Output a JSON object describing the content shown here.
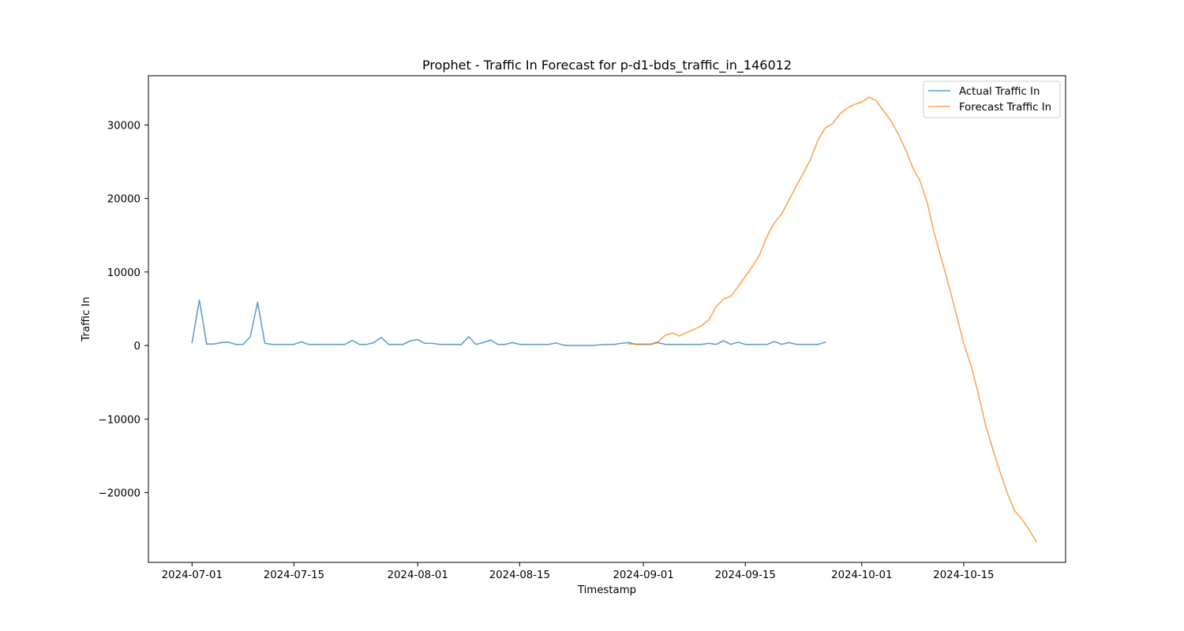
{
  "chart_data": {
    "type": "line",
    "title": "Prophet - Traffic In Forecast for p-d1-bds_traffic_in_146012",
    "xlabel": "Timestamp",
    "ylabel": "Traffic In",
    "x_ticks": [
      "2024-07-01",
      "2024-07-15",
      "2024-08-01",
      "2024-08-15",
      "2024-09-01",
      "2024-09-15",
      "2024-10-01",
      "2024-10-15"
    ],
    "y_ticks": [
      -20000,
      -10000,
      0,
      10000,
      20000,
      30000
    ],
    "y_tick_labels": [
      "−20000",
      "−10000",
      "0",
      "10000",
      "20000",
      "30000"
    ],
    "xlim": [
      "2024-06-25",
      "2024-10-29"
    ],
    "ylim": [
      -29500,
      36700
    ],
    "grid": false,
    "legend_position": "top-right",
    "series": [
      {
        "name": "Actual Traffic In",
        "color": "#1f77b4",
        "points": [
          [
            "2024-07-01",
            400
          ],
          [
            "2024-07-02",
            6200
          ],
          [
            "2024-07-03",
            200
          ],
          [
            "2024-07-04",
            200
          ],
          [
            "2024-07-05",
            400
          ],
          [
            "2024-07-06",
            450
          ],
          [
            "2024-07-07",
            150
          ],
          [
            "2024-07-08",
            150
          ],
          [
            "2024-07-09",
            1200
          ],
          [
            "2024-07-10",
            5900
          ],
          [
            "2024-07-11",
            300
          ],
          [
            "2024-07-12",
            150
          ],
          [
            "2024-07-13",
            150
          ],
          [
            "2024-07-14",
            150
          ],
          [
            "2024-07-15",
            150
          ],
          [
            "2024-07-16",
            500
          ],
          [
            "2024-07-17",
            150
          ],
          [
            "2024-07-18",
            150
          ],
          [
            "2024-07-19",
            150
          ],
          [
            "2024-07-20",
            150
          ],
          [
            "2024-07-21",
            150
          ],
          [
            "2024-07-22",
            150
          ],
          [
            "2024-07-23",
            700
          ],
          [
            "2024-07-24",
            150
          ],
          [
            "2024-07-25",
            150
          ],
          [
            "2024-07-26",
            400
          ],
          [
            "2024-07-27",
            1100
          ],
          [
            "2024-07-28",
            150
          ],
          [
            "2024-07-29",
            150
          ],
          [
            "2024-07-30",
            150
          ],
          [
            "2024-07-31",
            650
          ],
          [
            "2024-08-01",
            800
          ],
          [
            "2024-08-02",
            300
          ],
          [
            "2024-08-03",
            300
          ],
          [
            "2024-08-04",
            150
          ],
          [
            "2024-08-05",
            150
          ],
          [
            "2024-08-06",
            150
          ],
          [
            "2024-08-07",
            150
          ],
          [
            "2024-08-08",
            1200
          ],
          [
            "2024-08-09",
            150
          ],
          [
            "2024-08-10",
            400
          ],
          [
            "2024-08-11",
            750
          ],
          [
            "2024-08-12",
            150
          ],
          [
            "2024-08-13",
            150
          ],
          [
            "2024-08-14",
            400
          ],
          [
            "2024-08-15",
            150
          ],
          [
            "2024-08-16",
            150
          ],
          [
            "2024-08-17",
            150
          ],
          [
            "2024-08-18",
            150
          ],
          [
            "2024-08-19",
            150
          ],
          [
            "2024-08-20",
            350
          ],
          [
            "2024-08-21",
            50
          ],
          [
            "2024-08-22",
            0
          ],
          [
            "2024-08-23",
            0
          ],
          [
            "2024-08-24",
            0
          ],
          [
            "2024-08-25",
            0
          ],
          [
            "2024-08-26",
            100
          ],
          [
            "2024-08-27",
            150
          ],
          [
            "2024-08-28",
            150
          ],
          [
            "2024-08-29",
            300
          ],
          [
            "2024-08-30",
            400
          ],
          [
            "2024-08-31",
            150
          ],
          [
            "2024-09-01",
            150
          ],
          [
            "2024-09-02",
            150
          ],
          [
            "2024-09-03",
            400
          ],
          [
            "2024-09-04",
            150
          ],
          [
            "2024-09-05",
            150
          ],
          [
            "2024-09-06",
            150
          ],
          [
            "2024-09-07",
            150
          ],
          [
            "2024-09-08",
            150
          ],
          [
            "2024-09-09",
            150
          ],
          [
            "2024-09-10",
            300
          ],
          [
            "2024-09-11",
            150
          ],
          [
            "2024-09-12",
            650
          ],
          [
            "2024-09-13",
            150
          ],
          [
            "2024-09-14",
            450
          ],
          [
            "2024-09-15",
            150
          ],
          [
            "2024-09-16",
            150
          ],
          [
            "2024-09-17",
            150
          ],
          [
            "2024-09-18",
            150
          ],
          [
            "2024-09-19",
            550
          ],
          [
            "2024-09-20",
            150
          ],
          [
            "2024-09-21",
            400
          ],
          [
            "2024-09-22",
            150
          ],
          [
            "2024-09-23",
            150
          ],
          [
            "2024-09-24",
            150
          ],
          [
            "2024-09-25",
            150
          ],
          [
            "2024-09-26",
            450
          ]
        ]
      },
      {
        "name": "Forecast Traffic In",
        "color": "#ff7f0e",
        "points": [
          [
            "2024-08-30",
            200
          ],
          [
            "2024-08-31",
            200
          ],
          [
            "2024-09-01",
            200
          ],
          [
            "2024-09-02",
            200
          ],
          [
            "2024-09-03",
            500
          ],
          [
            "2024-09-04",
            1400
          ],
          [
            "2024-09-05",
            1700
          ],
          [
            "2024-09-06",
            1300
          ],
          [
            "2024-09-07",
            1800
          ],
          [
            "2024-09-08",
            2200
          ],
          [
            "2024-09-09",
            2700
          ],
          [
            "2024-09-10",
            3500
          ],
          [
            "2024-09-11",
            5300
          ],
          [
            "2024-09-12",
            6300
          ],
          [
            "2024-09-13",
            6700
          ],
          [
            "2024-09-14",
            8000
          ],
          [
            "2024-09-15",
            9400
          ],
          [
            "2024-09-16",
            10800
          ],
          [
            "2024-09-17",
            12400
          ],
          [
            "2024-09-18",
            14900
          ],
          [
            "2024-09-19",
            16700
          ],
          [
            "2024-09-20",
            17900
          ],
          [
            "2024-09-21",
            19800
          ],
          [
            "2024-09-22",
            21700
          ],
          [
            "2024-09-23",
            23500
          ],
          [
            "2024-09-24",
            25400
          ],
          [
            "2024-09-25",
            28000
          ],
          [
            "2024-09-26",
            29600
          ],
          [
            "2024-09-27",
            30200
          ],
          [
            "2024-09-28",
            31500
          ],
          [
            "2024-09-29",
            32300
          ],
          [
            "2024-09-30",
            32800
          ],
          [
            "2024-10-01",
            33100
          ],
          [
            "2024-10-02",
            33800
          ],
          [
            "2024-10-03",
            33300
          ],
          [
            "2024-10-04",
            31900
          ],
          [
            "2024-10-05",
            30600
          ],
          [
            "2024-10-06",
            28800
          ],
          [
            "2024-10-07",
            26700
          ],
          [
            "2024-10-08",
            24200
          ],
          [
            "2024-10-09",
            22400
          ],
          [
            "2024-10-10",
            19400
          ],
          [
            "2024-10-11",
            15100
          ],
          [
            "2024-10-12",
            11600
          ],
          [
            "2024-10-13",
            8000
          ],
          [
            "2024-10-14",
            4200
          ],
          [
            "2024-10-15",
            300
          ],
          [
            "2024-10-16",
            -2700
          ],
          [
            "2024-10-17",
            -6500
          ],
          [
            "2024-10-18",
            -10800
          ],
          [
            "2024-10-19",
            -14100
          ],
          [
            "2024-10-20",
            -17200
          ],
          [
            "2024-10-21",
            -20100
          ],
          [
            "2024-10-22",
            -22500
          ],
          [
            "2024-10-23",
            -23600
          ],
          [
            "2024-10-24",
            -25100
          ],
          [
            "2024-10-25",
            -26700
          ]
        ]
      }
    ]
  }
}
